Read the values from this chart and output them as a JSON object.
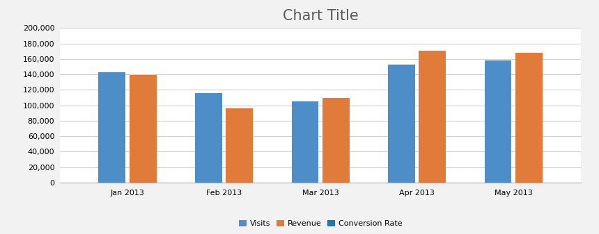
{
  "title": "Chart Title",
  "categories": [
    "Jan 2013",
    "Feb 2013",
    "Mar 2013",
    "Apr 2013",
    "May 2013"
  ],
  "series": [
    {
      "name": "Visits",
      "values": [
        143000,
        116000,
        105000,
        153000,
        158000
      ],
      "color": "#4E8EC8"
    },
    {
      "name": "Revenue",
      "values": [
        139000,
        96000,
        110000,
        171000,
        168000
      ],
      "color": "#E07B39"
    },
    {
      "name": "Conversion Rate",
      "values": [
        0,
        0,
        0,
        0,
        0
      ],
      "color": "#ABABAB"
    }
  ],
  "ylim": [
    0,
    200000
  ],
  "yticks": [
    0,
    20000,
    40000,
    60000,
    80000,
    100000,
    120000,
    140000,
    160000,
    180000,
    200000
  ],
  "fig_bg_color": "#F2F2F2",
  "plot_bg_color": "#FFFFFF",
  "grid_color": "#D0D0D0",
  "title_fontsize": 15,
  "legend_fontsize": 8,
  "tick_fontsize": 8,
  "bar_width": 0.28,
  "title_color": "#595959"
}
